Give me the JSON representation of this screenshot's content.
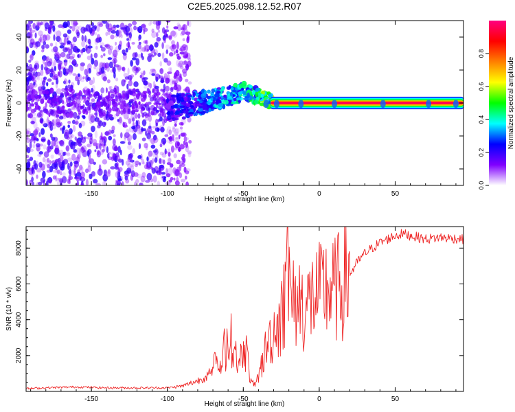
{
  "title": "C2E5.2025.098.12.52.R07",
  "chart_data": [
    {
      "type": "heatmap",
      "name": "spectrogram",
      "xlabel": "Height of straight line (km)",
      "ylabel": "Frequency (Hz)",
      "xlim": [
        -193,
        95
      ],
      "ylim": [
        -50,
        50
      ],
      "xticks": [
        -150,
        -100,
        -50,
        0,
        50
      ],
      "yticks": [
        -40,
        -20,
        0,
        20,
        40
      ],
      "colorbar": {
        "label": "Normalized spectral amplitude",
        "range": [
          0,
          1
        ],
        "ticks": [
          0.0,
          0.2,
          0.4,
          0.6,
          0.8
        ],
        "colors": [
          "#ffffff",
          "#8000ff",
          "#0000ff",
          "#00ffff",
          "#00ff00",
          "#ffff00",
          "#ff8000",
          "#ff0000",
          "#ff0080"
        ]
      },
      "ridge": {
        "x": [
          -100,
          -90,
          -80,
          -70,
          -60,
          -50,
          -40,
          -30,
          -20,
          -10,
          0,
          10,
          20,
          30,
          40,
          50,
          60,
          70,
          80,
          95
        ],
        "freq": [
          -4,
          -2,
          0,
          2,
          4,
          7,
          4,
          1,
          0,
          0,
          0,
          0,
          0,
          0,
          0,
          0,
          0,
          0,
          0,
          0
        ],
        "amplitude": [
          0.25,
          0.3,
          0.35,
          0.4,
          0.45,
          0.5,
          0.55,
          0.75,
          0.9,
          0.95,
          0.97,
          0.97,
          0.97,
          0.97,
          0.97,
          0.97,
          0.97,
          0.97,
          0.97,
          0.97
        ]
      }
    },
    {
      "type": "line",
      "name": "snr",
      "xlabel": "Height of straight line (km)",
      "ylabel": "SNR (10 * v/v)",
      "xlim": [
        -193,
        95
      ],
      "ylim": [
        0,
        9200
      ],
      "xticks": [
        -150,
        -100,
        -50,
        0,
        50
      ],
      "yticks": [
        2000,
        4000,
        6000,
        8000
      ],
      "series": [
        {
          "name": "SNR",
          "color": "#ee2222",
          "x": [
            -193,
            -180,
            -160,
            -140,
            -120,
            -100,
            -90,
            -80,
            -75,
            -70,
            -65,
            -60,
            -57,
            -55,
            -52,
            -50,
            -47,
            -45,
            -42,
            -40,
            -37,
            -35,
            -32,
            -30,
            -27,
            -25,
            -23,
            -21,
            -20,
            -18,
            -15,
            -12,
            -10,
            -5,
            0,
            5,
            10,
            15,
            20,
            25,
            30,
            35,
            40,
            45,
            50,
            55,
            60,
            70,
            80,
            95
          ],
          "y": [
            150,
            200,
            250,
            200,
            200,
            200,
            300,
            600,
            800,
            1100,
            1500,
            2500,
            3000,
            2000,
            1200,
            2800,
            1800,
            500,
            300,
            800,
            1800,
            2400,
            3000,
            3400,
            3800,
            4200,
            5000,
            5500,
            6000,
            4800,
            5000,
            5200,
            4500,
            5200,
            5400,
            5800,
            5600,
            6000,
            6500,
            7200,
            7700,
            8000,
            8300,
            8500,
            8700,
            8800,
            8700,
            8500,
            8600,
            8500
          ]
        }
      ]
    }
  ]
}
